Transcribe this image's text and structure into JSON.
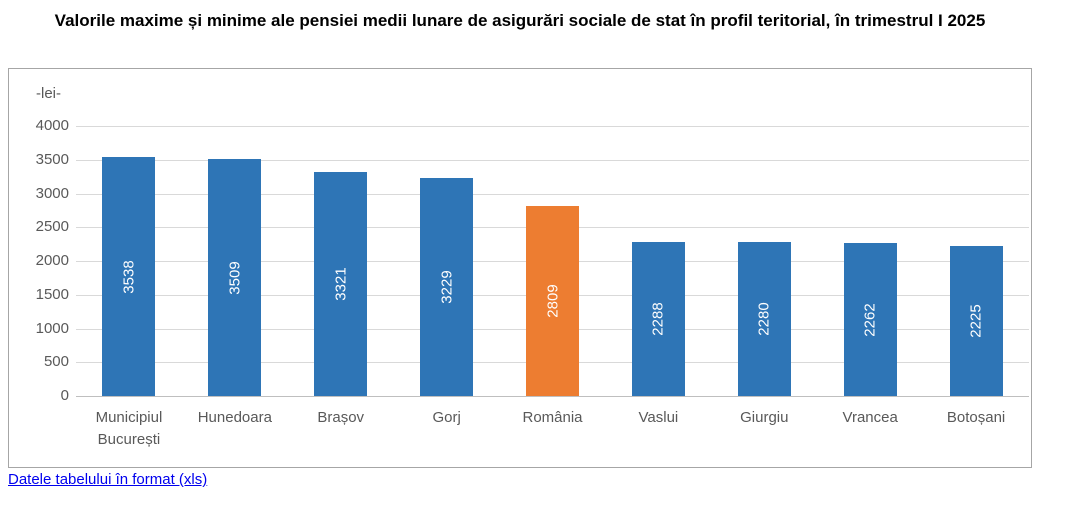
{
  "title": "Valorile maxime și minime ale pensiei medii lunare de asigurări sociale de stat în profil teritorial, în trimestrul I 2025",
  "link": {
    "label": "Datele tabelului în format (xls)"
  },
  "chart_data": {
    "type": "bar",
    "title": "Valorile maxime și minime ale pensiei medii lunare de asigurări sociale de stat în profil teritorial, în trimestrul I 2025",
    "unit_label": "-lei-",
    "categories": [
      "Municipiul București",
      "Hunedoara",
      "Brașov",
      "Gorj",
      "România",
      "Vaslui",
      "Giurgiu",
      "Vrancea",
      "Botoșani"
    ],
    "values": [
      3538,
      3509,
      3321,
      3229,
      2809,
      2288,
      2280,
      2262,
      2225
    ],
    "highlight_category": "România",
    "colors": {
      "bar": "#2e75b6",
      "highlight": "#ed7d31",
      "grid": "#d9d9d9",
      "baseline": "#bfbfbf",
      "axis_text": "#595959"
    },
    "ylim": [
      0,
      4000
    ],
    "yticks": [
      4000,
      3500,
      3000,
      2500,
      2000,
      1500,
      1000,
      500,
      0
    ],
    "grid": true,
    "legend": "none",
    "value_labels": "inside-vertical-white"
  }
}
